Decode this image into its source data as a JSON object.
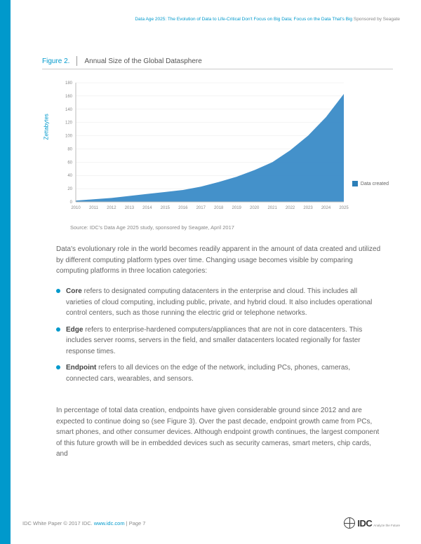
{
  "header": {
    "title_teal": "Data Age 2025: The Evolution of Data to Life-Critical Don't Focus on Big Data; Focus on the Data That's Big",
    "sponsor": " Sponsored by Seagate"
  },
  "figure": {
    "label": "Figure 2.",
    "title": "Annual Size of the Global Datasphere",
    "source": "Source: IDC's Data Age 2025 study, sponsored by Seagate, April 2017"
  },
  "chart": {
    "type": "area",
    "y_label": "Zettabytes",
    "legend_label": "Data created",
    "x_ticks": [
      "2010",
      "2011",
      "2012",
      "2013",
      "2014",
      "2015",
      "2016",
      "2017",
      "2018",
      "2019",
      "2020",
      "2021",
      "2022",
      "2023",
      "2024",
      "2025"
    ],
    "y_ticks": [
      0,
      20,
      40,
      60,
      80,
      100,
      120,
      140,
      160,
      180
    ],
    "ylim": [
      0,
      180
    ],
    "values": [
      2,
      4,
      6,
      9,
      12,
      15,
      18,
      23,
      30,
      38,
      48,
      60,
      78,
      100,
      128,
      163
    ],
    "fill_color": "#3a8bc7",
    "axis_color": "#bbbbbb",
    "grid_color": "#e8e8e8",
    "label_color": "#888888",
    "background": "#ffffff",
    "label_fontsize": 6
  },
  "body": {
    "p1": "Data's evolutionary role in the world becomes readily apparent in the amount of data created and utilized by different computing platform types over time. Changing usage becomes visible by comparing computing platforms in three location categories:",
    "b1_term": "Core",
    "b1_text": " refers to designated computing datacenters in the enterprise and cloud. This includes all varieties of cloud computing, including public, private, and hybrid cloud. It also includes operational control centers, such as those running the electric grid or telephone networks.",
    "b2_term": "Edge",
    "b2_text": " refers to enterprise-hardened computers/appliances that are not in core datacenters. This includes server rooms, servers in the field, and smaller datacenters located regionally for faster response times.",
    "b3_term": "Endpoint",
    "b3_text": " refers to all devices on the edge of the network, including PCs, phones, cameras, connected cars, wearables, and sensors.",
    "p2": "In percentage of total data creation, endpoints have given considerable ground since 2012 and are expected to continue doing so (see Figure 3). Over the past decade, endpoint growth came from PCs, smart phones, and other consumer devices. Although endpoint growth continues, the largest component of this future growth will be in embedded devices such as security cameras, smart meters, chip cards, and"
  },
  "footer": {
    "copyright_pre": "IDC White Paper  © 2017 IDC.  ",
    "url": "www.idc.com",
    "copyright_post": "  |  Page 7",
    "logo_text": "IDC",
    "logo_tag": "Analyze the Future"
  }
}
